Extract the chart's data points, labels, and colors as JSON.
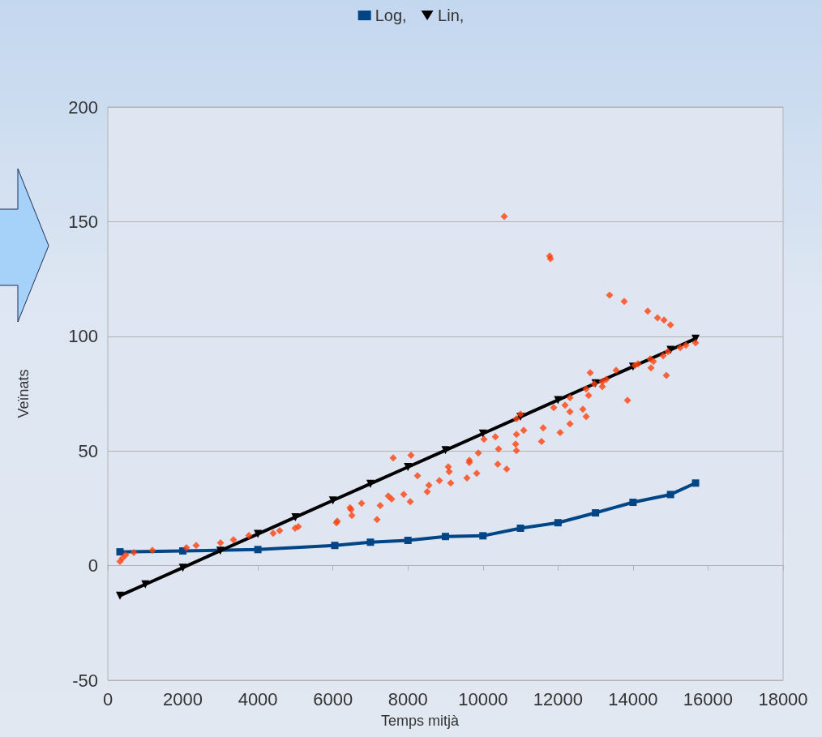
{
  "chart_data": {
    "type": "scatter",
    "xlabel": "Temps mitjà",
    "ylabel": "Veïnats",
    "xlim": [
      0,
      18000
    ],
    "xticks": [
      0,
      2000,
      4000,
      6000,
      8000,
      10000,
      12000,
      14000,
      16000,
      18000
    ],
    "ylim": [
      -50,
      200
    ],
    "yticks": [
      -50,
      0,
      50,
      100,
      150,
      200
    ],
    "grid": "y",
    "legend": "top",
    "series": [
      {
        "name": "Log,",
        "type": "line",
        "marker": "square",
        "color": "#004586",
        "x": [
          324,
          2000,
          4000,
          6050,
          7000,
          8000,
          9000,
          10000,
          11000,
          12000,
          13000,
          14000,
          15000,
          15667
        ],
        "values": [
          6.0,
          6.4,
          7.0,
          8.8,
          10.2,
          11.0,
          12.7,
          13.0,
          16.3,
          18.7,
          23.0,
          27.6,
          31.0,
          36.0
        ]
      },
      {
        "marker": "diamond",
        "color": "#ff420e",
        "x": [
          324,
          389,
          475,
          692,
          1189,
          2096,
          2355,
          3004,
          3350,
          3760,
          4408,
          4581,
          4992,
          5078,
          6094,
          6116,
          6455,
          6483,
          6505,
          6764,
          7175,
          7261,
          7477,
          7564,
          7607,
          7888,
          8061,
          8082,
          8255,
          8514,
          8558,
          8838,
          9076,
          9098,
          9141,
          9573,
          9638,
          9638,
          9833,
          9876,
          10027,
          10330,
          10394,
          10416,
          10632,
          10870,
          10892,
          10892,
          10892,
          11000,
          11086,
          11561,
          11605,
          11886,
          12058,
          12188,
          12318,
          12318,
          12318,
          12663,
          12750,
          12750,
          12815,
          12858,
          12966,
          13182,
          13182,
          13290,
          13549,
          13852,
          14047,
          14133,
          14457,
          14479,
          14544,
          14803,
          14889,
          14932,
          15257,
          15408,
          15667,
          10567,
          11777,
          11799,
          13376,
          13765,
          14392,
          14652,
          14825,
          14998
        ],
        "values": [
          1.8,
          3.2,
          4.6,
          5.7,
          6.7,
          7.8,
          8.8,
          9.9,
          11.3,
          13.1,
          14.1,
          15.2,
          16.3,
          17.0,
          18.7,
          19.4,
          25.2,
          24.4,
          21.9,
          27.2,
          20.1,
          26.2,
          30.4,
          29.0,
          47.0,
          31.1,
          27.9,
          48.1,
          39.2,
          32.2,
          35.0,
          37.1,
          43.1,
          41.0,
          36.0,
          38.2,
          45.9,
          44.9,
          40.3,
          49.1,
          55.1,
          56.2,
          44.2,
          50.9,
          42.1,
          53.0,
          57.2,
          64.0,
          50.2,
          66.1,
          59.0,
          54.1,
          60.1,
          68.9,
          58.0,
          70.0,
          73.2,
          67.1,
          61.8,
          68.2,
          65.0,
          77.0,
          74.2,
          84.1,
          79.2,
          80.2,
          78.1,
          81.3,
          85.2,
          72.1,
          87.3,
          88.0,
          90.1,
          86.2,
          89.1,
          91.5,
          83.0,
          93.3,
          95.1,
          96.1,
          97.2,
          152.3,
          135.0,
          133.9,
          118.0,
          115.2,
          111.0,
          108.1,
          107.1,
          105.0
        ]
      },
      {
        "name": "Lin,",
        "type": "line",
        "marker": "triangle",
        "color": "#000000",
        "x": [
          324,
          1000,
          2000,
          3000,
          4000,
          5000,
          6000,
          7000,
          8000,
          9000,
          10000,
          11000,
          12000,
          13000,
          14000,
          15000,
          15667
        ],
        "values": [
          -13.1,
          -8.2,
          -0.9,
          6.5,
          13.8,
          21.1,
          28.4,
          35.7,
          43.0,
          50.3,
          57.6,
          64.9,
          72.2,
          79.5,
          86.8,
          94.1,
          99.0
        ]
      }
    ]
  }
}
